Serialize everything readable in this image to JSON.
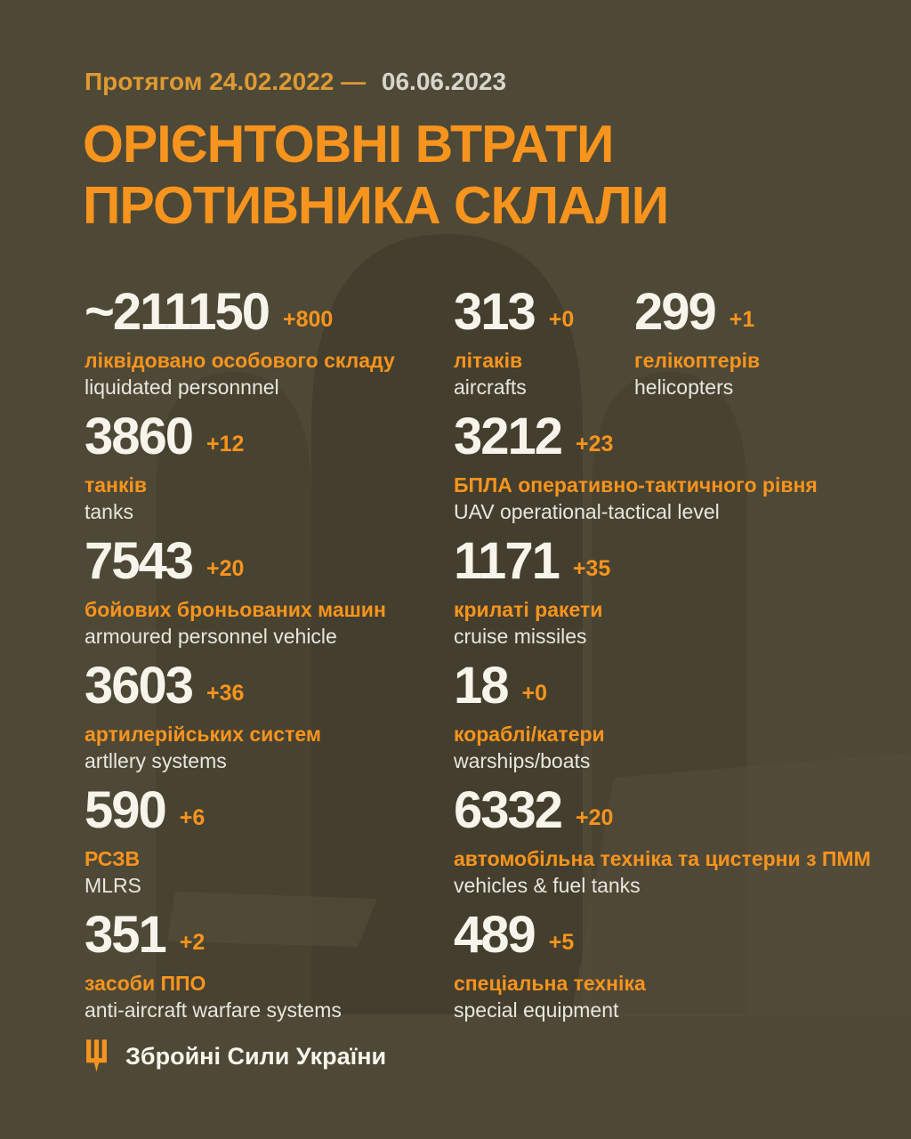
{
  "header": {
    "period_prefix": "Протягом 24.02.2022 —",
    "period_date": "06.06.2023",
    "title_line1": "ОРІЄНТОВНІ ВТРАТИ",
    "title_line2": "ПРОТИВНИКА СКЛАЛИ"
  },
  "stats": [
    {
      "id": "personnel",
      "value": "~211150",
      "delta": "+800",
      "label_uk": "ліквідовано особового складу",
      "label_en": "liquidated personnnel"
    },
    {
      "id": "aircrafts",
      "value": "313",
      "delta": "+0",
      "label_uk": "літаків",
      "label_en": "aircrafts"
    },
    {
      "id": "helicopters",
      "value": "299",
      "delta": "+1",
      "label_uk": "гелікоптерів",
      "label_en": "helicopters"
    },
    {
      "id": "tanks",
      "value": "3860",
      "delta": "+12",
      "label_uk": "танків",
      "label_en": "tanks"
    },
    {
      "id": "uav",
      "value": "3212",
      "delta": "+23",
      "label_uk": "БПЛА оперативно-тактичного рівня",
      "label_en": "UAV operational-tactical level"
    },
    {
      "id": "armoured",
      "value": "7543",
      "delta": "+20",
      "label_uk": "бойових броньованих машин",
      "label_en": "armoured personnel vehicle"
    },
    {
      "id": "cruise-missiles",
      "value": "1171",
      "delta": "+35",
      "label_uk": "крилаті ракети",
      "label_en": "cruise missiles"
    },
    {
      "id": "artillery",
      "value": "3603",
      "delta": "+36",
      "label_uk": "артилерійських систем",
      "label_en": "artllery systems"
    },
    {
      "id": "warships",
      "value": "18",
      "delta": "+0",
      "label_uk": "кораблі/катери",
      "label_en": "warships/boats"
    },
    {
      "id": "mlrs",
      "value": "590",
      "delta": "+6",
      "label_uk": "РСЗВ",
      "label_en": "MLRS"
    },
    {
      "id": "vehicles",
      "value": "6332",
      "delta": "+20",
      "label_uk": "автомобільна техніка та цистерни з ПММ",
      "label_en": "vehicles & fuel tanks"
    },
    {
      "id": "anti-aircraft",
      "value": "351",
      "delta": "+2",
      "label_uk": "засоби ППО",
      "label_en": "anti-aircraft warfare systems"
    },
    {
      "id": "special",
      "value": "489",
      "delta": "+5",
      "label_uk": "спеціальна техніка",
      "label_en": "special equipment"
    }
  ],
  "footer": {
    "org_name": "Збройні Сили України",
    "icon": "trident-icon"
  },
  "colors": {
    "background": "#4E4836",
    "watermark_dark": "#443E2E",
    "watermark_mid": "#484231",
    "watermark_light": "#564F3C",
    "accent_orange": "#F7941D",
    "date_prefix_orange": "#DE9A33",
    "number_white": "#F7F4EC",
    "label_en": "#E9E6DD",
    "date_white": "#D8D5CB"
  },
  "chart_data": {
    "type": "table",
    "title": "ОРІЄНТОВНІ ВТРАТИ ПРОТИВНИКА СКЛАЛИ",
    "subtitle": "Протягом 24.02.2022 — 06.06.2023",
    "categories": [
      "liquidated personnnel",
      "aircrafts",
      "helicopters",
      "tanks",
      "UAV operational-tactical level",
      "armoured personnel vehicle",
      "cruise missiles",
      "artllery systems",
      "warships/boats",
      "MLRS",
      "vehicles & fuel tanks",
      "anti-aircraft warfare systems",
      "special equipment"
    ],
    "values": [
      211150,
      313,
      299,
      3860,
      3212,
      7543,
      1171,
      3603,
      18,
      590,
      6332,
      351,
      489
    ],
    "daily_increase": [
      800,
      0,
      1,
      12,
      23,
      20,
      35,
      36,
      0,
      6,
      20,
      2,
      5
    ],
    "source": "Збройні Сили України"
  }
}
